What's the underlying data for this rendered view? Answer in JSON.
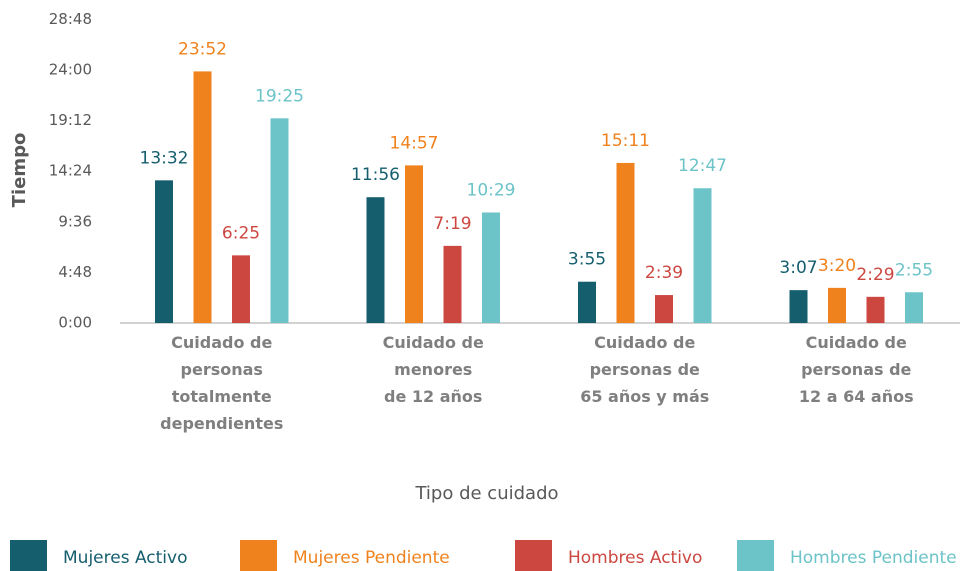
{
  "chart_data": {
    "type": "bar",
    "xlabel": "Tipo de cuidado",
    "ylabel": "Tiempo",
    "categories": [
      "Cuidado de\npersonas\ntotalmente\ndependientes",
      "Cuidado de\nmenores\nde 12 años",
      "Cuidado de\npersonas de\n65 años y más",
      "Cuidado de\npersonas de\n12 a 64 años"
    ],
    "series": [
      {
        "name": "Mujeres Activo",
        "color": "#155e6e",
        "values": [
          812,
          716,
          235,
          187
        ],
        "value_labels": [
          "13:32",
          "11:56",
          "3:55",
          "3:07"
        ]
      },
      {
        "name": "Mujeres Pendiente",
        "color": "#f0821e",
        "values": [
          1432,
          897,
          911,
          200
        ],
        "value_labels": [
          "23:52",
          "14:57",
          "15:11",
          "3:20"
        ]
      },
      {
        "name": "Hombres Activo",
        "color": "#cc4740",
        "values": [
          385,
          439,
          159,
          149
        ],
        "value_labels": [
          "6:25",
          "7:19",
          "2:39",
          "2:29"
        ]
      },
      {
        "name": "Hombres Pendiente",
        "color": "#6cc3c8",
        "values": [
          1165,
          629,
          767,
          175
        ],
        "value_labels": [
          "19:25",
          "10:29",
          "12:47",
          "2:55"
        ]
      }
    ],
    "ylim": [
      0,
      1728
    ],
    "yticks": [
      {
        "value": 0,
        "label": "0:00"
      },
      {
        "value": 288,
        "label": "4:48"
      },
      {
        "value": 576,
        "label": "9:36"
      },
      {
        "value": 864,
        "label": "14:24"
      },
      {
        "value": 1152,
        "label": "19:12"
      },
      {
        "value": 1440,
        "label": "24:00"
      },
      {
        "value": 1728,
        "label": "28:48"
      }
    ],
    "legend": "bottom"
  }
}
